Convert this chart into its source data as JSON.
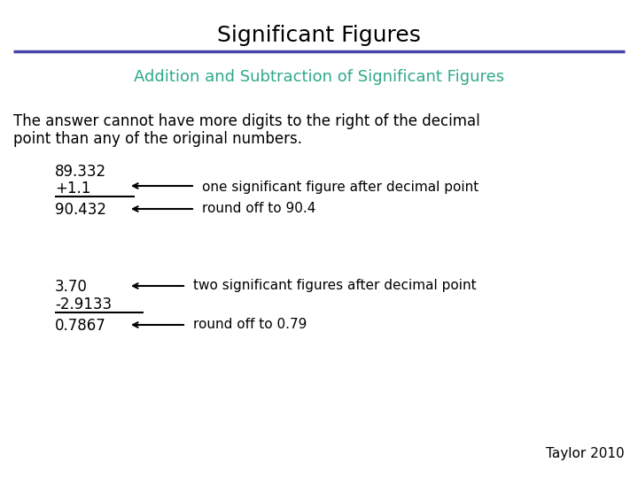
{
  "title": "Significant Figures",
  "subtitle": "Addition and Subtraction of Significant Figures",
  "subtitle_color": "#2EAA88",
  "title_color": "#000000",
  "background_color": "#FFFFFF",
  "body_line1": "The answer cannot have more digits to the right of the decimal",
  "body_line2": "point than any of the original numbers.",
  "example1": {
    "line1": "89.332",
    "line2": "+1.1",
    "line3": "90.432",
    "arrow1_label": "one significant figure after decimal point",
    "arrow2_label": "round off to 90.4"
  },
  "example2": {
    "line1": "3.70",
    "line2": "-2.9133",
    "line3": "0.7867",
    "arrow1_label": "two significant figures after decimal point",
    "arrow2_label": "round off to 0.79"
  },
  "footer": "Taylor 2010",
  "separator_color": "#4444AA",
  "font_family": "DejaVu Sans",
  "title_fontsize": 18,
  "subtitle_fontsize": 13,
  "body_fontsize": 12,
  "num_fontsize": 12,
  "label_fontsize": 11
}
